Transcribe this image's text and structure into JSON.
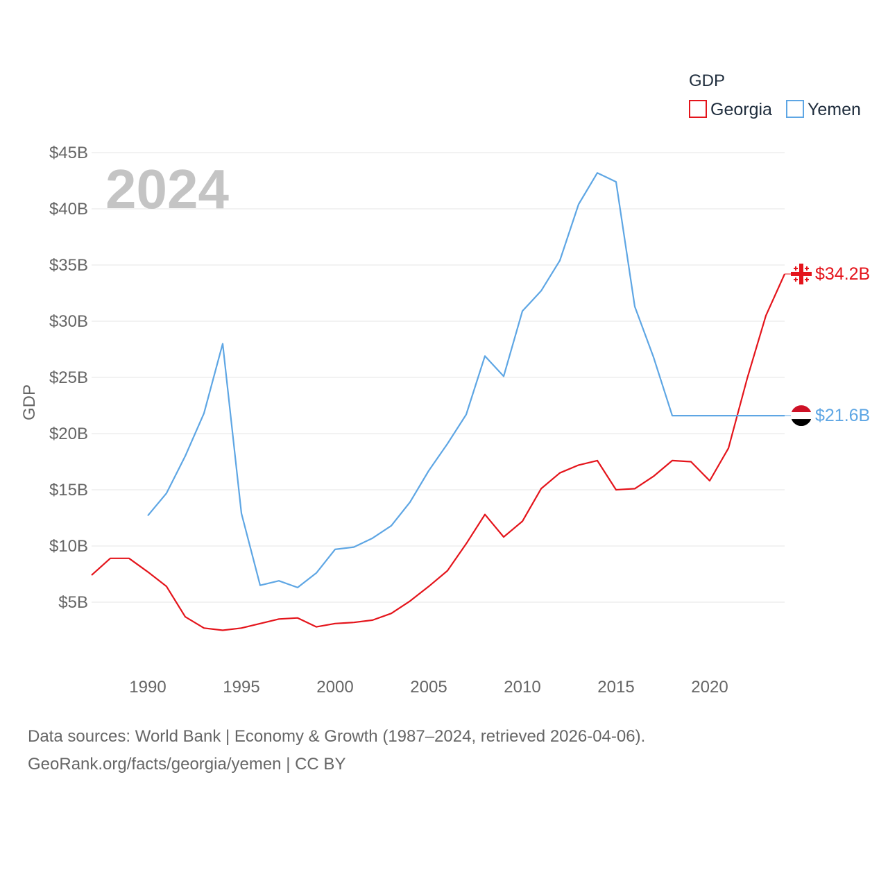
{
  "chart_data": {
    "type": "line",
    "legend": {
      "title": "GDP",
      "position": "top-right"
    },
    "ylabel": "GDP",
    "year_display": "2024",
    "ylim": [
      0,
      45
    ],
    "xlim": [
      1987,
      2024
    ],
    "y_ticks": [
      {
        "value": 5,
        "label": "$5B"
      },
      {
        "value": 10,
        "label": "$10B"
      },
      {
        "value": 15,
        "label": "$15B"
      },
      {
        "value": 20,
        "label": "$20B"
      },
      {
        "value": 25,
        "label": "$25B"
      },
      {
        "value": 30,
        "label": "$30B"
      },
      {
        "value": 35,
        "label": "$35B"
      },
      {
        "value": 40,
        "label": "$40B"
      },
      {
        "value": 45,
        "label": "$45B"
      }
    ],
    "x_ticks": [
      {
        "value": 1990,
        "label": "1990"
      },
      {
        "value": 1995,
        "label": "1995"
      },
      {
        "value": 2000,
        "label": "2000"
      },
      {
        "value": 2005,
        "label": "2005"
      },
      {
        "value": 2010,
        "label": "2010"
      },
      {
        "value": 2015,
        "label": "2015"
      },
      {
        "value": 2020,
        "label": "2020"
      }
    ],
    "series": [
      {
        "name": "Georgia",
        "color": "#e4141b",
        "end_label": "$34.2B",
        "flag_icon": "georgia-flag-icon",
        "x": [
          1987,
          1988,
          1989,
          1990,
          1991,
          1992,
          1993,
          1994,
          1995,
          1996,
          1997,
          1998,
          1999,
          2000,
          2001,
          2002,
          2003,
          2004,
          2005,
          2006,
          2007,
          2008,
          2009,
          2010,
          2011,
          2012,
          2013,
          2014,
          2015,
          2016,
          2017,
          2018,
          2019,
          2020,
          2021,
          2022,
          2023,
          2024
        ],
        "values": [
          7.4,
          8.9,
          8.9,
          7.7,
          6.4,
          3.7,
          2.7,
          2.5,
          2.7,
          3.1,
          3.5,
          3.6,
          2.8,
          3.1,
          3.2,
          3.4,
          4.0,
          5.1,
          6.4,
          7.8,
          10.2,
          12.8,
          10.8,
          12.2,
          15.1,
          16.5,
          17.2,
          17.6,
          15.0,
          15.1,
          16.2,
          17.6,
          17.5,
          15.8,
          18.7,
          24.9,
          30.5,
          34.2
        ]
      },
      {
        "name": "Yemen",
        "color": "#5ea6e4",
        "end_label": "$21.6B",
        "flag_icon": "yemen-flag-icon",
        "x": [
          1990,
          1991,
          1992,
          1993,
          1994,
          1995,
          1996,
          1997,
          1998,
          1999,
          2000,
          2001,
          2002,
          2003,
          2004,
          2005,
          2006,
          2007,
          2008,
          2009,
          2010,
          2011,
          2012,
          2013,
          2014,
          2015,
          2016,
          2017,
          2018,
          2019,
          2020,
          2021,
          2022,
          2023,
          2024
        ],
        "values": [
          12.7,
          14.7,
          18.0,
          21.8,
          28.0,
          12.9,
          6.5,
          6.9,
          6.3,
          7.6,
          9.7,
          9.9,
          10.7,
          11.8,
          13.9,
          16.7,
          19.1,
          21.7,
          26.9,
          25.1,
          30.9,
          32.7,
          35.4,
          40.4,
          43.2,
          42.4,
          31.3,
          26.8,
          21.6,
          21.6,
          21.6,
          21.6,
          21.6,
          21.6,
          21.6
        ]
      }
    ]
  },
  "footer": {
    "line1": "Data sources: World Bank | Economy & Growth (1987–2024, retrieved 2026-04-06).",
    "line2": "GeoRank.org/facts/georgia/yemen | CC BY"
  }
}
